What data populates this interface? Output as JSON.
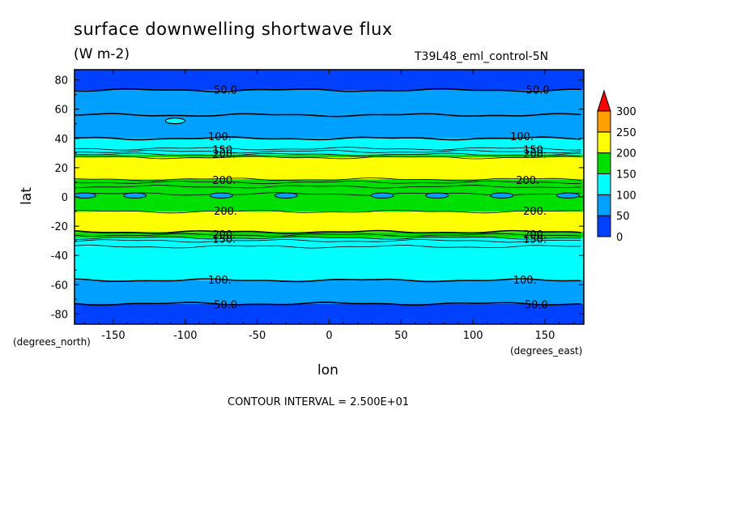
{
  "title": "surface downwelling shortwave flux",
  "units": "(W m-2)",
  "dataset": "T39L48_eml_control-5N",
  "xlabel": "lon",
  "ylabel": "lat",
  "x_units": "(degrees_east)",
  "y_units": "(degrees_north)",
  "contour_interval": "CONTOUR INTERVAL = 2.500E+01",
  "chart_data": {
    "type": "heatmap",
    "title": "surface downwelling shortwave flux",
    "xlabel": "lon",
    "ylabel": "lat",
    "xlim": [
      -177,
      177
    ],
    "ylim": [
      -87,
      87
    ],
    "xticks": [
      -150,
      -100,
      -50,
      0,
      50,
      100,
      150
    ],
    "yticks": [
      -80,
      -60,
      -40,
      -20,
      0,
      20,
      40,
      60,
      80
    ],
    "colorbar": {
      "levels": [
        0,
        50,
        100,
        150,
        200,
        250,
        300
      ],
      "colors": [
        "#0040ff",
        "#00a0ff",
        "#00ffff",
        "#00e000",
        "#ffff00",
        "#ffa000",
        "#ff0000"
      ],
      "extend": "max"
    },
    "zonal_bands": [
      {
        "lat_from": 73,
        "lat_to": 87,
        "value": "0-50",
        "color": "#0040ff"
      },
      {
        "lat_from": 56,
        "lat_to": 73,
        "value": "50-75",
        "color": "#00a0ff"
      },
      {
        "lat_from": 40,
        "lat_to": 56,
        "value": "75-100",
        "color": "#00a0ff"
      },
      {
        "lat_from": 33,
        "lat_to": 40,
        "value": "100-125",
        "color": "#00ffff"
      },
      {
        "lat_from": 29,
        "lat_to": 33,
        "value": "125-150",
        "color": "#00ffff"
      },
      {
        "lat_from": 27,
        "lat_to": 29,
        "value": "150-175",
        "color": "#00e000"
      },
      {
        "lat_from": 12,
        "lat_to": 27,
        "value": "200-225",
        "color": "#ffff00"
      },
      {
        "lat_from": -10,
        "lat_to": 12,
        "value": "150-200",
        "color": "#00e000"
      },
      {
        "lat_from": -24,
        "lat_to": -10,
        "value": "200-225",
        "color": "#ffff00"
      },
      {
        "lat_from": -28,
        "lat_to": -24,
        "value": "175-200",
        "color": "#00e000"
      },
      {
        "lat_from": -34,
        "lat_to": -28,
        "value": "125-150",
        "color": "#00ffff"
      },
      {
        "lat_from": -57,
        "lat_to": -34,
        "value": "100-125",
        "color": "#00ffff"
      },
      {
        "lat_from": -73,
        "lat_to": -57,
        "value": "50-100",
        "color": "#00a0ff"
      },
      {
        "lat_from": -87,
        "lat_to": -73,
        "value": "0-50",
        "color": "#0040ff"
      }
    ],
    "contour_lines_lat": [
      73,
      56,
      40,
      33,
      31,
      29,
      27,
      12,
      10,
      7,
      2,
      -10,
      -24,
      -26,
      -28,
      -30,
      -34,
      -57,
      -73
    ],
    "contour_labels": [
      {
        "text": "50.0",
        "lon": -72,
        "lat": 73
      },
      {
        "text": "50.0",
        "lon": 145,
        "lat": 73
      },
      {
        "text": "100.",
        "lon": -76,
        "lat": 41
      },
      {
        "text": "100.",
        "lon": 134,
        "lat": 41
      },
      {
        "text": "150.",
        "lon": -73,
        "lat": 32
      },
      {
        "text": "200.",
        "lon": -73,
        "lat": 29
      },
      {
        "text": "150.",
        "lon": 143,
        "lat": 32
      },
      {
        "text": "200.",
        "lon": 143,
        "lat": 29
      },
      {
        "text": "200.",
        "lon": -73,
        "lat": 11
      },
      {
        "text": "200.",
        "lon": 138,
        "lat": 11
      },
      {
        "text": "200.",
        "lon": -72,
        "lat": -10
      },
      {
        "text": "200.",
        "lon": 143,
        "lat": -10
      },
      {
        "text": "200.",
        "lon": -73,
        "lat": -26
      },
      {
        "text": "150.",
        "lon": -73,
        "lat": -29
      },
      {
        "text": "200.",
        "lon": 143,
        "lat": -26
      },
      {
        "text": "150.",
        "lon": 143,
        "lat": -29
      },
      {
        "text": "100.",
        "lon": -76,
        "lat": -57
      },
      {
        "text": "100.",
        "lon": 136,
        "lat": -57
      },
      {
        "text": "50.0",
        "lon": -72,
        "lat": -74
      },
      {
        "text": "50.0",
        "lon": 144,
        "lat": -74
      }
    ],
    "equatorial_minima_lon": [
      -170,
      -135,
      -75,
      -30,
      37,
      75,
      120,
      166
    ],
    "highlat_cell": {
      "lon": -107,
      "lat": 52
    }
  }
}
